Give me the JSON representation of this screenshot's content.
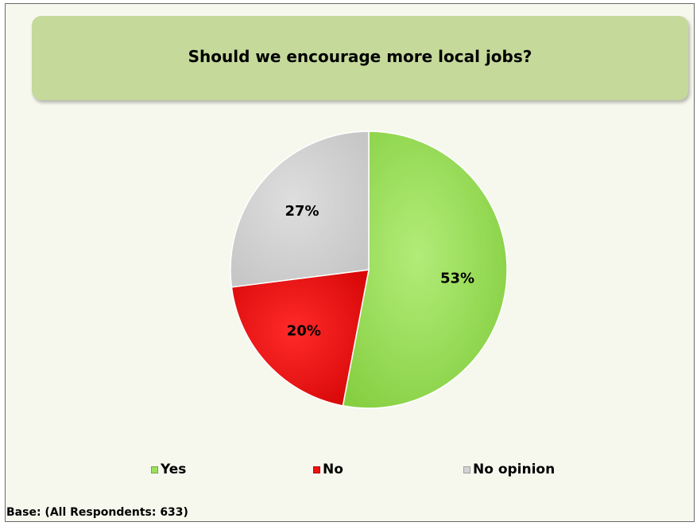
{
  "chart_data": {
    "type": "pie",
    "title": "Should we encourage more local jobs?",
    "categories": [
      "Yes",
      "No",
      "No opinion"
    ],
    "values": [
      53,
      20,
      27
    ],
    "labels": [
      "53%",
      "20%",
      "27%"
    ],
    "unit": "%",
    "colors": [
      "#9be05a",
      "#ee1111",
      "#d3d3d3"
    ],
    "legend_position": "bottom",
    "start_angle": "12 o'clock",
    "direction": "clockwise",
    "note": "Base: (All Respondents: 633)"
  }
}
